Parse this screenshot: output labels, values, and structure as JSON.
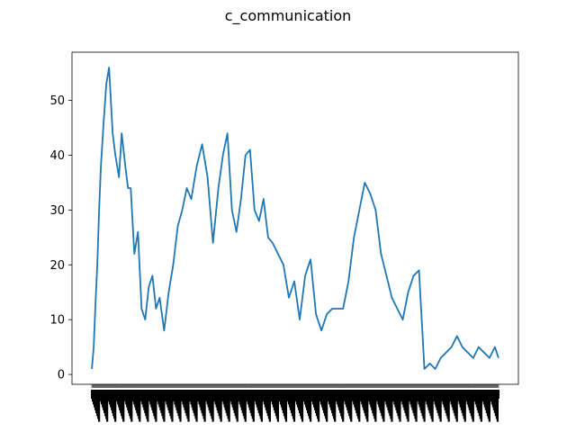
{
  "chart_data": {
    "type": "line",
    "title": "c_communication",
    "xlabel": "",
    "ylabel": "",
    "ylim": [
      -1.8,
      58.8
    ],
    "xlim": [
      -22,
      472
    ],
    "yticks": [
      0,
      10,
      20,
      30,
      40,
      50
    ],
    "ytick_labels": [
      "0",
      "10",
      "20",
      "30",
      "40",
      "50"
    ],
    "x_tick_count": 451,
    "x_tick_rotation": 90,
    "grid": false,
    "legend": "none",
    "series": [
      {
        "color": "#1f77b4",
        "x": [
          0,
          2,
          4,
          6,
          8,
          10,
          13,
          16,
          19,
          23,
          26,
          30,
          33,
          37,
          40,
          43,
          47,
          51,
          55,
          59,
          63,
          67,
          71,
          75,
          80,
          85,
          90,
          95,
          100,
          105,
          110,
          116,
          122,
          128,
          134,
          140,
          145,
          150,
          155,
          160,
          165,
          170,
          175,
          180,
          185,
          190,
          195,
          200,
          206,
          212,
          218,
          224,
          230,
          236,
          242,
          248,
          254,
          260,
          266,
          272,
          278,
          284,
          290,
          296,
          302,
          308,
          314,
          320,
          326,
          332,
          338,
          344,
          350,
          356,
          362,
          368,
          374,
          380,
          386,
          392,
          398,
          404,
          410,
          416,
          422,
          428,
          434,
          440,
          446,
          450
        ],
        "y": [
          1,
          5,
          13,
          20,
          30,
          38,
          46,
          53,
          56,
          44,
          40,
          36,
          44,
          38,
          34,
          34,
          22,
          26,
          12,
          10,
          16,
          18,
          12,
          14,
          8,
          15,
          20,
          27,
          30,
          34,
          32,
          38,
          42,
          36,
          24,
          34,
          40,
          44,
          30,
          26,
          32,
          40,
          41,
          30,
          28,
          32,
          25,
          24,
          22,
          20,
          14,
          17,
          10,
          18,
          21,
          11,
          8,
          11,
          12,
          12,
          12,
          17,
          25,
          30,
          35,
          33,
          30,
          22,
          18,
          14,
          12,
          10,
          15,
          18,
          19,
          1,
          2,
          1,
          3,
          4,
          5,
          7,
          5,
          4,
          3,
          5,
          4,
          3,
          5,
          3
        ]
      }
    ]
  }
}
